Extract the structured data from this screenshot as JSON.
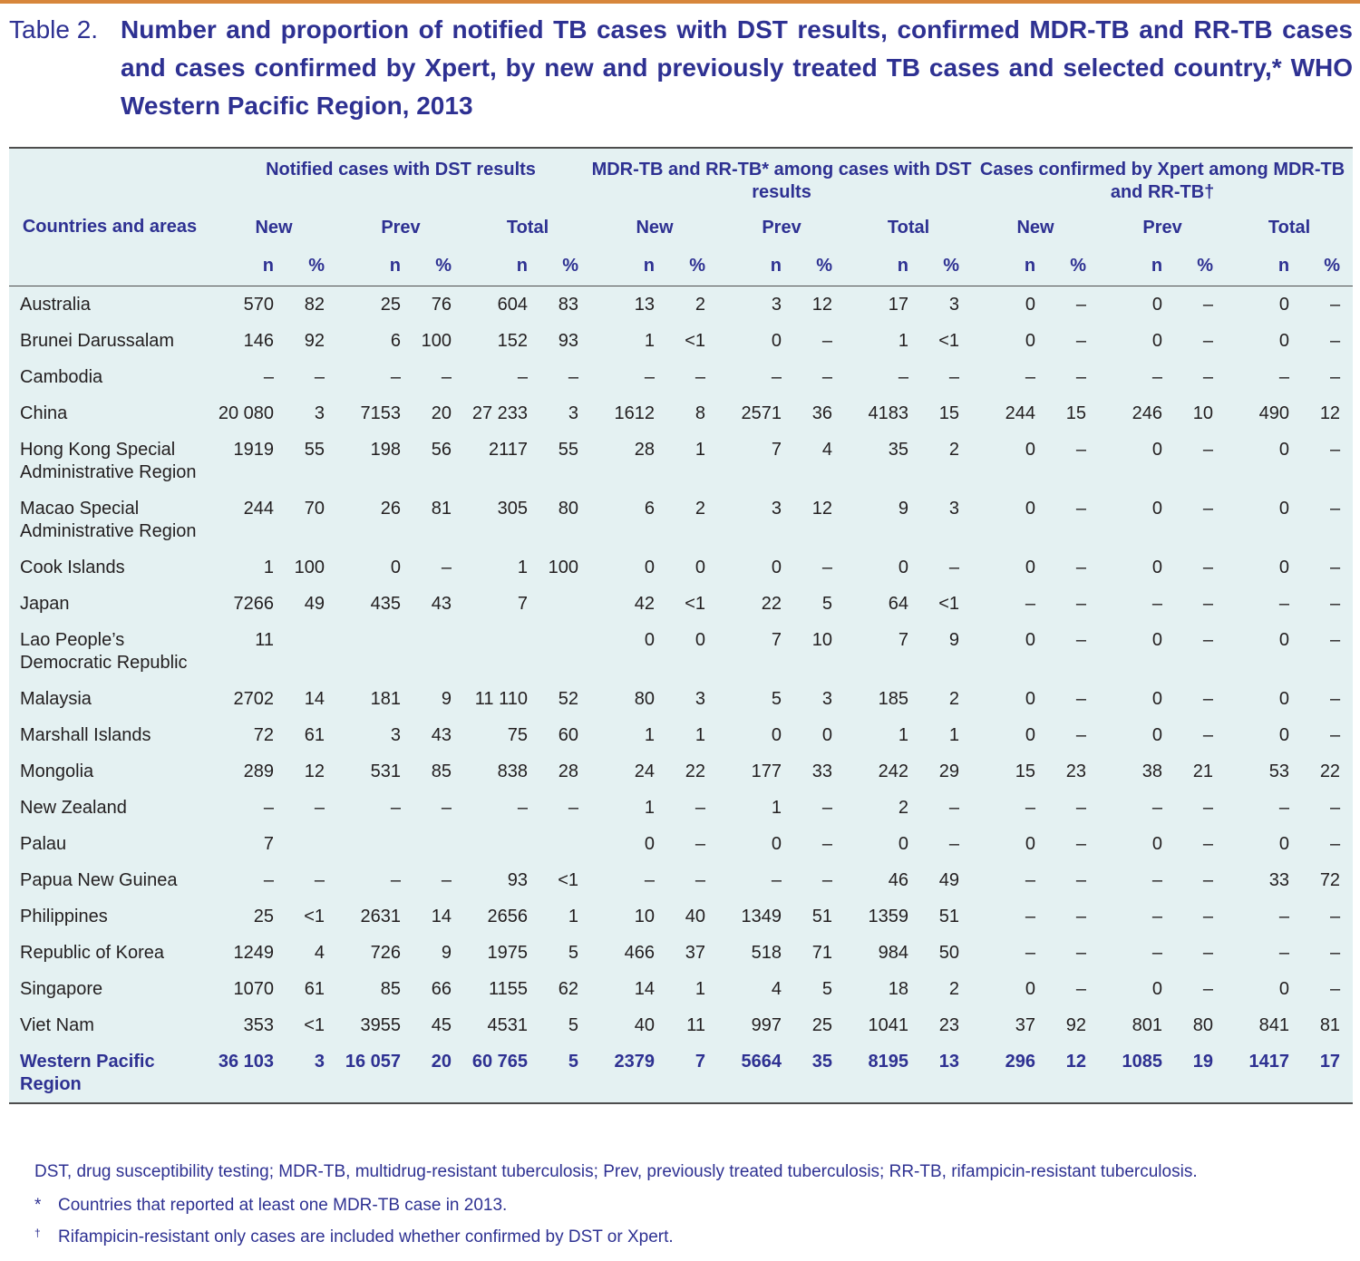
{
  "header": {
    "label": "Table 2.",
    "title": "Number and proportion of notified TB cases with DST results, confirmed MDR-TB and RR-TB cases and cases confirmed by Xpert, by new and previously treated TB cases and selected country,* WHO Western Pacific Region, 2013"
  },
  "table": {
    "row_header": "Countries and areas",
    "groups": [
      {
        "title": "Notified cases with DST results",
        "subgroups": [
          "New",
          "Prev",
          "Total"
        ]
      },
      {
        "title": "MDR-TB and RR-TB* among cases with DST results",
        "subgroups": [
          "New",
          "Prev",
          "Total"
        ]
      },
      {
        "title": "Cases confirmed by Xpert among MDR-TB and RR-TB†",
        "subgroups": [
          "New",
          "Prev",
          "Total"
        ]
      }
    ],
    "column_labels": [
      "n",
      "%"
    ],
    "rows": [
      {
        "name": "Australia",
        "cells": [
          "570",
          "82",
          "25",
          "76",
          "604",
          "83",
          "13",
          "2",
          "3",
          "12",
          "17",
          "3",
          "0",
          "–",
          "0",
          "–",
          "0",
          "–"
        ]
      },
      {
        "name": "Brunei Darussalam",
        "cells": [
          "146",
          "92",
          "6",
          "100",
          "152",
          "93",
          "1",
          "<1",
          "0",
          "–",
          "1",
          "<1",
          "0",
          "–",
          "0",
          "–",
          "0",
          "–"
        ]
      },
      {
        "name": "Cambodia",
        "cells": [
          "–",
          "–",
          "–",
          "–",
          "–",
          "–",
          "–",
          "–",
          "–",
          "–",
          "–",
          "–",
          "–",
          "–",
          "–",
          "–",
          "–",
          "–"
        ]
      },
      {
        "name": "China",
        "cells": [
          "20 080",
          "3",
          "7153",
          "20",
          "27 233",
          "3",
          "1612",
          "8",
          "2571",
          "36",
          "4183",
          "15",
          "244",
          "15",
          "246",
          "10",
          "490",
          "12"
        ]
      },
      {
        "name": "Hong Kong Special Administrative Region",
        "cells": [
          "1919",
          "55",
          "198",
          "56",
          "2117",
          "55",
          "28",
          "1",
          "7",
          "4",
          "35",
          "2",
          "0",
          "–",
          "0",
          "–",
          "0",
          "–"
        ]
      },
      {
        "name": "Macao Special Administrative Region",
        "cells": [
          "244",
          "70",
          "26",
          "81",
          "305",
          "80",
          "6",
          "2",
          "3",
          "12",
          "9",
          "3",
          "0",
          "–",
          "0",
          "–",
          "0",
          "–"
        ]
      },
      {
        "name": "Cook Islands",
        "cells": [
          "1",
          "100",
          "0",
          "–",
          "1",
          "100",
          "0",
          "0",
          "0",
          "–",
          "0",
          "–",
          "0",
          "–",
          "0",
          "–",
          "0",
          "–"
        ]
      },
      {
        "name": "Japan",
        "cells": [
          "7266",
          "49",
          "435",
          "43",
          "7",
          null,
          "42",
          "<1",
          "22",
          "5",
          "64",
          "<1",
          "–",
          "–",
          "–",
          "–",
          "–",
          "–"
        ]
      },
      {
        "name": "Lao People’s Democratic Republic",
        "cells": [
          "11",
          null,
          null,
          null,
          null,
          null,
          "0",
          "0",
          "7",
          "10",
          "7",
          "9",
          "0",
          "–",
          "0",
          "–",
          "0",
          "–"
        ]
      },
      {
        "name": "Malaysia",
        "cells": [
          "2702",
          "14",
          "181",
          "9",
          "11 110",
          "52",
          "80",
          "3",
          "5",
          "3",
          "185",
          "2",
          "0",
          "–",
          "0",
          "–",
          "0",
          "–"
        ]
      },
      {
        "name": "Marshall Islands",
        "cells": [
          "72",
          "61",
          "3",
          "43",
          "75",
          "60",
          "1",
          "1",
          "0",
          "0",
          "1",
          "1",
          "0",
          "–",
          "0",
          "–",
          "0",
          "–"
        ]
      },
      {
        "name": "Mongolia",
        "cells": [
          "289",
          "12",
          "531",
          "85",
          "838",
          "28",
          "24",
          "22",
          "177",
          "33",
          "242",
          "29",
          "15",
          "23",
          "38",
          "21",
          "53",
          "22"
        ]
      },
      {
        "name": "New Zealand",
        "cells": [
          "–",
          "–",
          "–",
          "–",
          "–",
          "–",
          "1",
          "–",
          "1",
          "–",
          "2",
          "–",
          "–",
          "–",
          "–",
          "–",
          "–",
          "–"
        ]
      },
      {
        "name": "Palau",
        "cells": [
          "7",
          null,
          null,
          null,
          null,
          null,
          "0",
          "–",
          "0",
          "–",
          "0",
          "–",
          "0",
          "–",
          "0",
          "–",
          "0",
          "–"
        ]
      },
      {
        "name": "Papua New Guinea",
        "cells": [
          "–",
          "–",
          "–",
          "–",
          "93",
          "<1",
          "–",
          "–",
          "–",
          "–",
          "46",
          "49",
          "–",
          "–",
          "–",
          "–",
          "33",
          "72"
        ]
      },
      {
        "name": "Philippines",
        "cells": [
          "25",
          "<1",
          "2631",
          "14",
          "2656",
          "1",
          "10",
          "40",
          "1349",
          "51",
          "1359",
          "51",
          "–",
          "–",
          "–",
          "–",
          "–",
          "–"
        ]
      },
      {
        "name": "Republic of Korea",
        "cells": [
          "1249",
          "4",
          "726",
          "9",
          "1975",
          "5",
          "466",
          "37",
          "518",
          "71",
          "984",
          "50",
          "–",
          "–",
          "–",
          "–",
          "–",
          "–"
        ]
      },
      {
        "name": "Singapore",
        "cells": [
          "1070",
          "61",
          "85",
          "66",
          "1155",
          "62",
          "14",
          "1",
          "4",
          "5",
          "18",
          "2",
          "0",
          "–",
          "0",
          "–",
          "0",
          "–"
        ]
      },
      {
        "name": "Viet Nam",
        "cells": [
          "353",
          "<1",
          "3955",
          "45",
          "4531",
          "5",
          "40",
          "11",
          "997",
          "25",
          "1041",
          "23",
          "37",
          "92",
          "801",
          "80",
          "841",
          "81"
        ]
      }
    ],
    "total_row": {
      "name": "Western Pacific Region",
      "cells": [
        "36 103",
        "3",
        "16 057",
        "20",
        "60 765",
        "5",
        "2379",
        "7",
        "5664",
        "35",
        "8195",
        "13",
        "296",
        "12",
        "1085",
        "19",
        "1417",
        "17"
      ]
    }
  },
  "footnotes": [
    {
      "text": "DST, drug susceptibility testing; MDR-TB, multidrug-resistant tuberculosis; Prev, previously treated tuberculosis; RR-TB, rifampicin-resistant tuberculosis."
    },
    {
      "marker": "*",
      "text": "Countries that reported at least one MDR-TB case in 2013."
    },
    {
      "marker": "†",
      "text": "Rifampicin-resistant only cases are included whether confirmed by DST or Xpert."
    }
  ]
}
